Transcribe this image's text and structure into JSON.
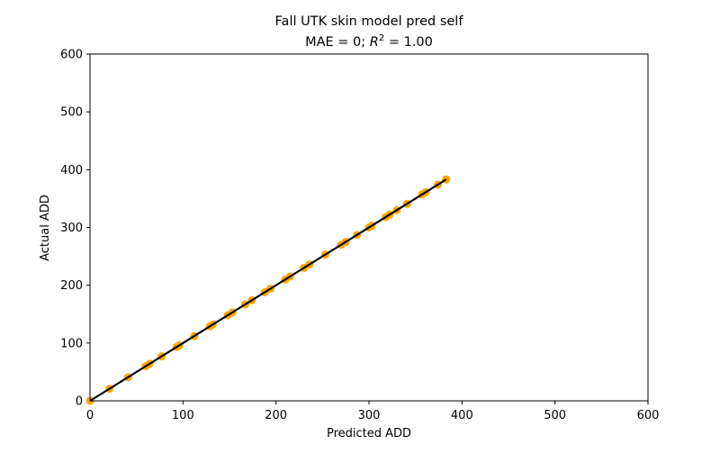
{
  "chart_data": {
    "type": "scatter",
    "title": "Fall UTK skin model pred self",
    "subtitle": {
      "mae_text": "MAE = 0; ",
      "r2_symbol": "R",
      "r2_exponent": "2",
      "r2_value_text": " = 1.00"
    },
    "xlabel": "Predicted ADD",
    "ylabel": "Actual ADD",
    "xlim": [
      0,
      600
    ],
    "ylim": [
      0,
      600
    ],
    "xticks": [
      "0",
      "100",
      "200",
      "300",
      "400",
      "500",
      "600"
    ],
    "yticks": [
      "0",
      "100",
      "200",
      "300",
      "400",
      "500",
      "600"
    ],
    "grid": false,
    "point_color": "#ffa500",
    "line_color": "#000000",
    "points": [
      {
        "x": 0,
        "y": 0
      },
      {
        "x": 21,
        "y": 21
      },
      {
        "x": 41,
        "y": 41
      },
      {
        "x": 60,
        "y": 60
      },
      {
        "x": 64,
        "y": 64
      },
      {
        "x": 77,
        "y": 77
      },
      {
        "x": 93,
        "y": 93
      },
      {
        "x": 96,
        "y": 96
      },
      {
        "x": 112,
        "y": 112
      },
      {
        "x": 129,
        "y": 129
      },
      {
        "x": 132,
        "y": 132
      },
      {
        "x": 148,
        "y": 148
      },
      {
        "x": 153,
        "y": 153
      },
      {
        "x": 167,
        "y": 167
      },
      {
        "x": 174,
        "y": 174
      },
      {
        "x": 188,
        "y": 188
      },
      {
        "x": 194,
        "y": 194
      },
      {
        "x": 210,
        "y": 210
      },
      {
        "x": 215,
        "y": 215
      },
      {
        "x": 230,
        "y": 230
      },
      {
        "x": 236,
        "y": 236
      },
      {
        "x": 253,
        "y": 253
      },
      {
        "x": 270,
        "y": 270
      },
      {
        "x": 275,
        "y": 275
      },
      {
        "x": 287,
        "y": 287
      },
      {
        "x": 300,
        "y": 300
      },
      {
        "x": 303,
        "y": 303
      },
      {
        "x": 318,
        "y": 318
      },
      {
        "x": 322,
        "y": 322
      },
      {
        "x": 330,
        "y": 330
      },
      {
        "x": 341,
        "y": 341
      },
      {
        "x": 357,
        "y": 357
      },
      {
        "x": 361,
        "y": 361
      },
      {
        "x": 374,
        "y": 374
      },
      {
        "x": 383,
        "y": 383
      }
    ],
    "fit_line": {
      "x": [
        0,
        383
      ],
      "y": [
        0,
        383
      ]
    }
  }
}
